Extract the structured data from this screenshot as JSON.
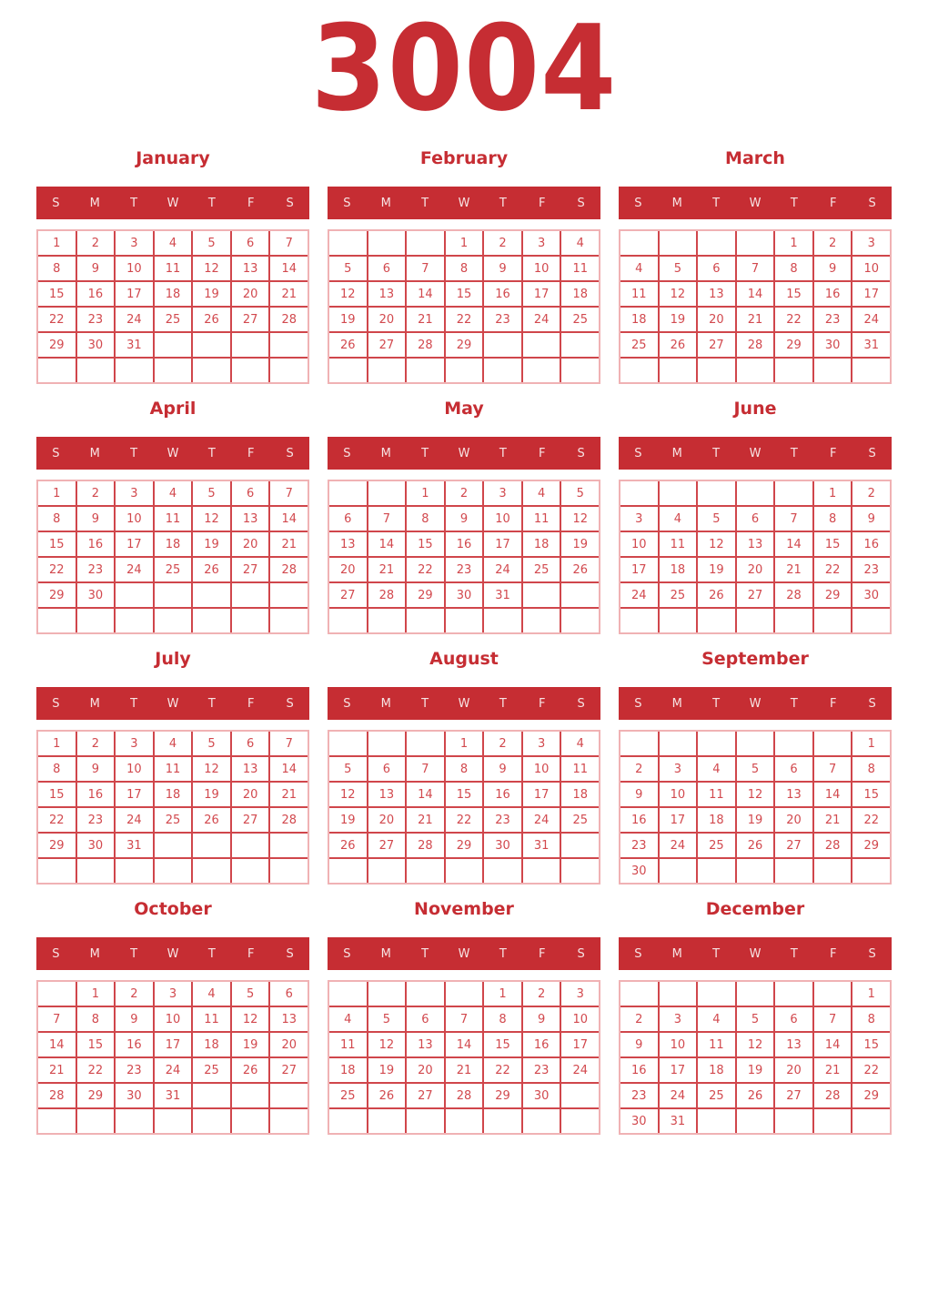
{
  "year": "3004",
  "weekdays": [
    "S",
    "M",
    "T",
    "W",
    "T",
    "F",
    "S"
  ],
  "colors": {
    "accent": "#c62d33",
    "day_number": "#d2494e",
    "grid_line": "#d0464b",
    "grid_outer_border": "#f0b2b4",
    "weekday_text": "#f6e3e3",
    "background": "#ffffff"
  },
  "months": [
    {
      "name": "January",
      "cells": [
        "1",
        "2",
        "3",
        "4",
        "5",
        "6",
        "7",
        "8",
        "9",
        "10",
        "11",
        "12",
        "13",
        "14",
        "15",
        "16",
        "17",
        "18",
        "19",
        "20",
        "21",
        "22",
        "23",
        "24",
        "25",
        "26",
        "27",
        "28",
        "29",
        "30",
        "31",
        "",
        "",
        "",
        "",
        "",
        "",
        "",
        "",
        "",
        "",
        ""
      ]
    },
    {
      "name": "February",
      "cells": [
        "",
        "",
        "",
        "1",
        "2",
        "3",
        "4",
        "5",
        "6",
        "7",
        "8",
        "9",
        "10",
        "11",
        "12",
        "13",
        "14",
        "15",
        "16",
        "17",
        "18",
        "19",
        "20",
        "21",
        "22",
        "23",
        "24",
        "25",
        "26",
        "27",
        "28",
        "29",
        "",
        "",
        "",
        "",
        "",
        "",
        "",
        "",
        "",
        ""
      ]
    },
    {
      "name": "March",
      "cells": [
        "",
        "",
        "",
        "",
        "1",
        "2",
        "3",
        "4",
        "5",
        "6",
        "7",
        "8",
        "9",
        "10",
        "11",
        "12",
        "13",
        "14",
        "15",
        "16",
        "17",
        "18",
        "19",
        "20",
        "21",
        "22",
        "23",
        "24",
        "25",
        "26",
        "27",
        "28",
        "29",
        "30",
        "31",
        "",
        "",
        "",
        "",
        "",
        "",
        ""
      ]
    },
    {
      "name": "April",
      "cells": [
        "1",
        "2",
        "3",
        "4",
        "5",
        "6",
        "7",
        "8",
        "9",
        "10",
        "11",
        "12",
        "13",
        "14",
        "15",
        "16",
        "17",
        "18",
        "19",
        "20",
        "21",
        "22",
        "23",
        "24",
        "25",
        "26",
        "27",
        "28",
        "29",
        "30",
        "",
        "",
        "",
        "",
        "",
        "",
        "",
        "",
        "",
        "",
        "",
        ""
      ]
    },
    {
      "name": "May",
      "cells": [
        "",
        "",
        "1",
        "2",
        "3",
        "4",
        "5",
        "6",
        "7",
        "8",
        "9",
        "10",
        "11",
        "12",
        "13",
        "14",
        "15",
        "16",
        "17",
        "18",
        "19",
        "20",
        "21",
        "22",
        "23",
        "24",
        "25",
        "26",
        "27",
        "28",
        "29",
        "30",
        "31",
        "",
        "",
        "",
        "",
        "",
        "",
        "",
        "",
        ""
      ]
    },
    {
      "name": "June",
      "cells": [
        "",
        "",
        "",
        "",
        "",
        "1",
        "2",
        "3",
        "4",
        "5",
        "6",
        "7",
        "8",
        "9",
        "10",
        "11",
        "12",
        "13",
        "14",
        "15",
        "16",
        "17",
        "18",
        "19",
        "20",
        "21",
        "22",
        "23",
        "24",
        "25",
        "26",
        "27",
        "28",
        "29",
        "30",
        "",
        "",
        "",
        "",
        "",
        "",
        ""
      ]
    },
    {
      "name": "July",
      "cells": [
        "1",
        "2",
        "3",
        "4",
        "5",
        "6",
        "7",
        "8",
        "9",
        "10",
        "11",
        "12",
        "13",
        "14",
        "15",
        "16",
        "17",
        "18",
        "19",
        "20",
        "21",
        "22",
        "23",
        "24",
        "25",
        "26",
        "27",
        "28",
        "29",
        "30",
        "31",
        "",
        "",
        "",
        "",
        "",
        "",
        "",
        "",
        "",
        "",
        ""
      ]
    },
    {
      "name": "August",
      "cells": [
        "",
        "",
        "",
        "1",
        "2",
        "3",
        "4",
        "5",
        "6",
        "7",
        "8",
        "9",
        "10",
        "11",
        "12",
        "13",
        "14",
        "15",
        "16",
        "17",
        "18",
        "19",
        "20",
        "21",
        "22",
        "23",
        "24",
        "25",
        "26",
        "27",
        "28",
        "29",
        "30",
        "31",
        "",
        "",
        "",
        "",
        "",
        "",
        "",
        ""
      ]
    },
    {
      "name": "September",
      "cells": [
        "",
        "",
        "",
        "",
        "",
        "",
        "1",
        "2",
        "3",
        "4",
        "5",
        "6",
        "7",
        "8",
        "9",
        "10",
        "11",
        "12",
        "13",
        "14",
        "15",
        "16",
        "17",
        "18",
        "19",
        "20",
        "21",
        "22",
        "23",
        "24",
        "25",
        "26",
        "27",
        "28",
        "29",
        "30",
        "",
        "",
        "",
        "",
        "",
        ""
      ]
    },
    {
      "name": "October",
      "cells": [
        "",
        "1",
        "2",
        "3",
        "4",
        "5",
        "6",
        "7",
        "8",
        "9",
        "10",
        "11",
        "12",
        "13",
        "14",
        "15",
        "16",
        "17",
        "18",
        "19",
        "20",
        "21",
        "22",
        "23",
        "24",
        "25",
        "26",
        "27",
        "28",
        "29",
        "30",
        "31",
        "",
        "",
        "",
        "",
        "",
        "",
        "",
        "",
        "",
        ""
      ]
    },
    {
      "name": "November",
      "cells": [
        "",
        "",
        "",
        "",
        "1",
        "2",
        "3",
        "4",
        "5",
        "6",
        "7",
        "8",
        "9",
        "10",
        "11",
        "12",
        "13",
        "14",
        "15",
        "16",
        "17",
        "18",
        "19",
        "20",
        "21",
        "22",
        "23",
        "24",
        "25",
        "26",
        "27",
        "28",
        "29",
        "30",
        "",
        "",
        "",
        "",
        "",
        "",
        "",
        ""
      ]
    },
    {
      "name": "December",
      "cells": [
        "",
        "",
        "",
        "",
        "",
        "",
        "1",
        "2",
        "3",
        "4",
        "5",
        "6",
        "7",
        "8",
        "9",
        "10",
        "11",
        "12",
        "13",
        "14",
        "15",
        "16",
        "17",
        "18",
        "19",
        "20",
        "21",
        "22",
        "23",
        "24",
        "25",
        "26",
        "27",
        "28",
        "29",
        "30",
        "31",
        "",
        "",
        "",
        "",
        ""
      ]
    }
  ]
}
